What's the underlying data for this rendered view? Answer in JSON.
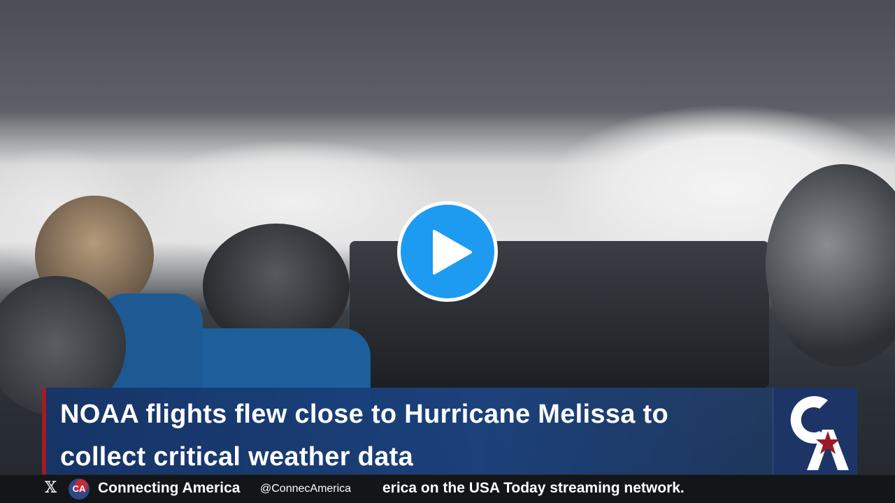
{
  "video": {
    "play_icon": "play-icon",
    "play_color": "#1d9bf0"
  },
  "lower_third": {
    "headline_line1": "NOAA flights flew close to Hurricane Melissa to",
    "headline_line2": "collect critical weather data",
    "accent_color": "#a01c28",
    "panel_color": "#1a4280",
    "logo_text": "CA"
  },
  "ticker": {
    "x_icon": "x-logo-icon",
    "brand_name": "Connecting America",
    "handle": "@ConnecAmerica",
    "scroll_text": "erica on the USA Today streaming network."
  }
}
